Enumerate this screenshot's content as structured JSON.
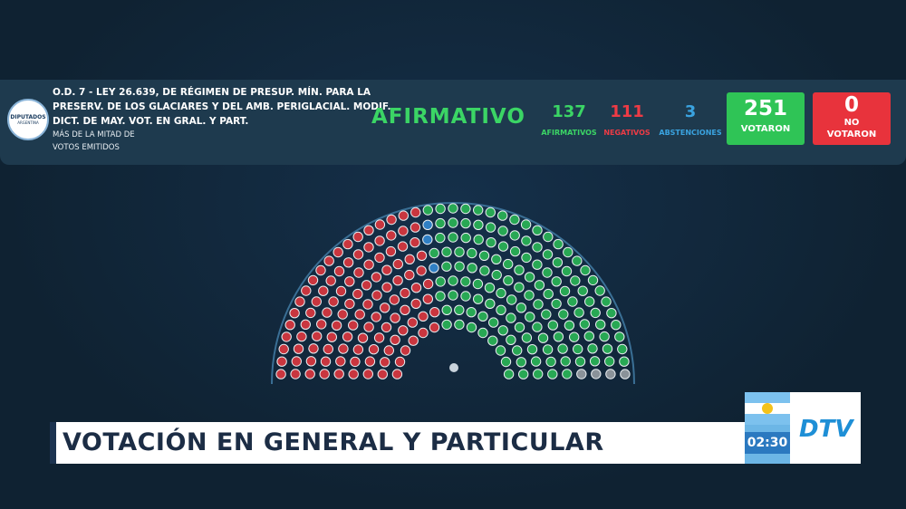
{
  "header": {
    "logo": "DIPUTADOS",
    "logo_sub": "ARGENTINA",
    "title_lines": [
      "O.D. 7 - LEY 26.639, DE RÉGIMEN DE PRESUP. MÍN. PARA LA",
      "PRESERV. DE LOS GLACIARES Y DEL AMB. PERIGLACIAL. MODIF.",
      "DICT. DE MAY. VOT. EN GRAL. Y PART."
    ],
    "majority_lines": [
      "MÁS DE LA MITAD DE",
      "VOTOS EMITIDOS"
    ]
  },
  "result": "AFIRMATIVO",
  "counts": [
    {
      "value": 137,
      "label": "AFIRMATIVOS"
    },
    {
      "value": 111,
      "label": "NEGATIVOS"
    },
    {
      "value": 3,
      "label": "ABSTENCIONES"
    }
  ],
  "voted": {
    "value": 251,
    "label": "VOTARON"
  },
  "not_voted": {
    "value": 0,
    "label_lines": [
      "NO",
      "VOTARON"
    ]
  },
  "lower_third": {
    "headline": "VOTACIÓN EN GENERAL Y PARTICULAR",
    "clock": "02:30",
    "channel": "DTV"
  }
}
